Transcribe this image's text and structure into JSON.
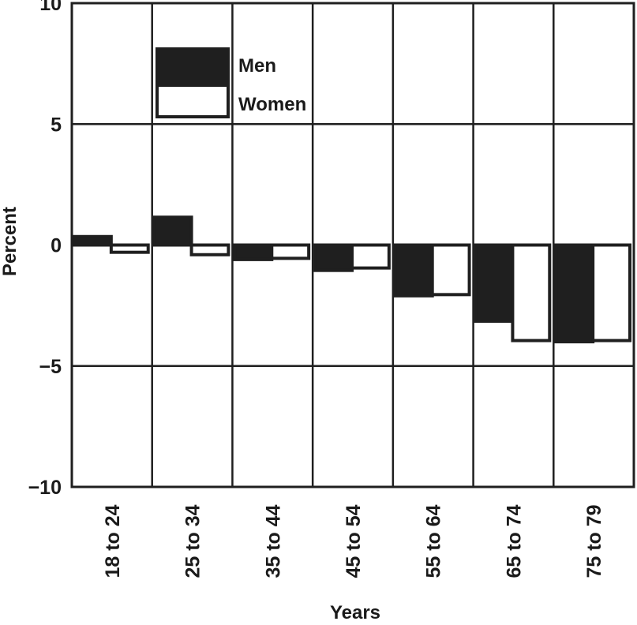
{
  "chart_data": {
    "type": "bar",
    "categories": [
      "18 to 24",
      "25 to 34",
      "35 to 44",
      "45 to 54",
      "55 to 64",
      "65 to 74",
      "75 to 79"
    ],
    "series": [
      {
        "name": "Men",
        "values": [
          0.35,
          1.15,
          -0.6,
          -1.05,
          -2.1,
          -3.15,
          -4.0
        ],
        "color": "#1f1f1f"
      },
      {
        "name": "Women",
        "values": [
          -0.3,
          -0.4,
          -0.55,
          -0.95,
          -2.05,
          -3.95,
          -3.95
        ],
        "color": "#ffffff"
      }
    ],
    "xlabel": "Years",
    "ylabel": "Percent",
    "ylim": [
      -10,
      10
    ],
    "yticks": [
      10,
      5,
      0,
      -5,
      -10
    ],
    "ytick_labels": [
      "10",
      "5",
      "0",
      "−5",
      "−10"
    ],
    "grid": true,
    "legend": "top-left"
  }
}
